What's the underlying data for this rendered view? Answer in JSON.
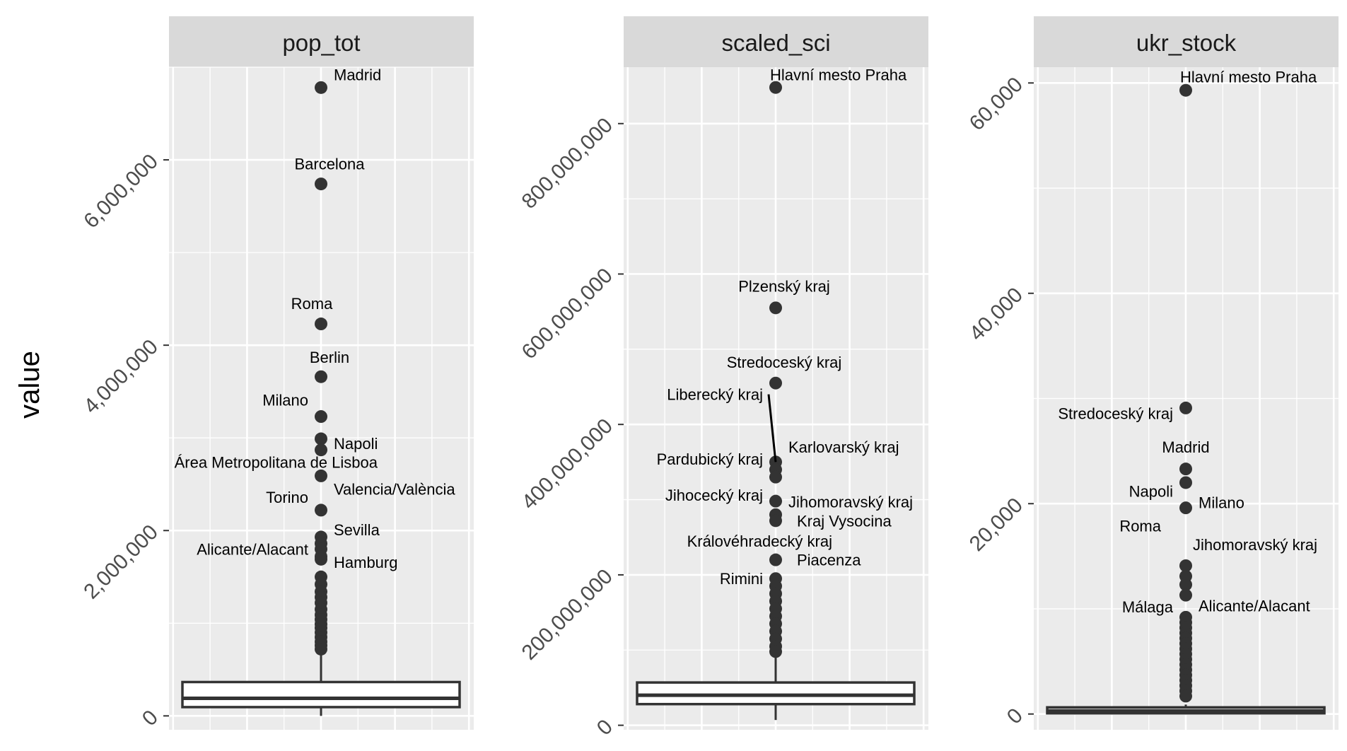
{
  "chart_data": {
    "type": "boxplot",
    "ylabel": "value",
    "xlabel": "",
    "grid": true,
    "facets": [
      {
        "name": "pop_tot",
        "ylim": [
          -150000,
          7000000
        ],
        "ticks": [
          0,
          2000000,
          4000000,
          6000000
        ],
        "tick_labels": [
          "0",
          "2,000,000",
          "4,000,000",
          "6,000,000"
        ],
        "box": {
          "q1": 110000,
          "median": 190000,
          "q3": 350000,
          "whisker_low": 0,
          "whisker_high": 700000
        },
        "outliers": [
          6780000,
          5740000,
          4230000,
          3660000,
          3230000,
          2990000,
          2870000,
          2590000,
          2220000,
          1930000,
          1860000,
          1800000,
          1720000,
          1690000,
          1500000,
          1420000,
          1340000,
          1280000,
          1220000,
          1150000,
          1090000,
          1040000,
          990000,
          950000,
          900000,
          850000,
          800000,
          760000,
          720000
        ],
        "labels": [
          {
            "text": "Madrid",
            "value": 6780000,
            "side": "right",
            "value_offset": 140000
          },
          {
            "text": "Barcelona",
            "value": 5740000,
            "side": "center",
            "value_offset": 220000
          },
          {
            "text": "Roma",
            "value": 4230000,
            "side": "left-center",
            "value_offset": 220000
          },
          {
            "text": "Berlin",
            "value": 3660000,
            "side": "center-right",
            "value_offset": 210000
          },
          {
            "text": "Milano",
            "value": 3230000,
            "side": "left",
            "value_offset": 180000
          },
          {
            "text": "Napoli",
            "value": 2990000,
            "side": "right",
            "value_offset": -50000
          },
          {
            "text": "Área Metropolitana de Lisboa",
            "value": 2590000,
            "side": "left-wide",
            "value_offset": 150000
          },
          {
            "text": "Valencia/València",
            "value": 2220000,
            "side": "right",
            "value_offset": 230000
          },
          {
            "text": "Torino",
            "value": 2220000,
            "side": "left",
            "value_offset": 140000
          },
          {
            "text": "Sevilla",
            "value": 1930000,
            "side": "right",
            "value_offset": 80000
          },
          {
            "text": "Alicante/Alacant",
            "value": 1800000,
            "side": "left",
            "value_offset": 0
          },
          {
            "text": "Hamburg",
            "value": 1720000,
            "side": "right",
            "value_offset": -60000
          }
        ]
      },
      {
        "name": "scaled_sci",
        "ylim": [
          -6000000,
          875000000
        ],
        "ticks": [
          0,
          200000000,
          400000000,
          600000000,
          800000000
        ],
        "tick_labels": [
          "0",
          "200,000,000",
          "400,000,000",
          "600,000,000",
          "800,000,000"
        ],
        "box": {
          "q1": 30000000,
          "median": 40000000,
          "q3": 55000000,
          "whisker_low": 7000000,
          "whisker_high": 90000000
        },
        "outliers": [
          848000000,
          555000000,
          455000000,
          350000000,
          340000000,
          330000000,
          298000000,
          280000000,
          272000000,
          220000000,
          195000000,
          185000000,
          175000000,
          165000000,
          155000000,
          145000000,
          135000000,
          125000000,
          115000000,
          105000000,
          98000000
        ],
        "labels": [
          {
            "text": "Hlavní mesto Praha",
            "value": 848000000,
            "side": "right-near",
            "value_offset": 17000000
          },
          {
            "text": "Plzenský kraj",
            "value": 555000000,
            "side": "center",
            "value_offset": 29000000
          },
          {
            "text": "Stredoceský kraj",
            "value": 455000000,
            "side": "center",
            "value_offset": 28000000
          },
          {
            "text": "Liberecký kraj",
            "value": 350000000,
            "side": "left-far",
            "value_offset": 90000000,
            "segment": true
          },
          {
            "text": "Karlovarský kraj",
            "value": 350000000,
            "side": "right",
            "value_offset": 20000000
          },
          {
            "text": "Pardubický kraj",
            "value": 340000000,
            "side": "left",
            "value_offset": 14000000
          },
          {
            "text": "Jihomoravský kraj",
            "value": 330000000,
            "side": "right",
            "value_offset": -33000000
          },
          {
            "text": "Jihocecký kraj",
            "value": 298000000,
            "side": "left",
            "value_offset": 8000000
          },
          {
            "text": "Kraj Vysocina",
            "value": 280000000,
            "side": "right-mid",
            "value_offset": -8000000
          },
          {
            "text": "Královéhradecký kraj",
            "value": 272000000,
            "side": "left-wide",
            "value_offset": -27000000
          },
          {
            "text": "Piacenza",
            "value": 220000000,
            "side": "right-mid",
            "value_offset": 0
          },
          {
            "text": "Rimini",
            "value": 220000000,
            "side": "left",
            "value_offset": -25000000
          }
        ]
      },
      {
        "name": "ukr_stock",
        "ylim": [
          -1500,
          61500
        ],
        "ticks": [
          0,
          20000,
          40000,
          60000
        ],
        "tick_labels": [
          "0",
          "20,000",
          "40,000",
          "60,000"
        ],
        "box": {
          "q1": 200,
          "median": 300,
          "q3": 500,
          "whisker_low": 0,
          "whisker_high": 900
        },
        "outliers": [
          59300,
          29100,
          23300,
          22000,
          19600,
          14100,
          13100,
          12300,
          11300,
          9200,
          8700,
          8200,
          7700,
          7200,
          6700,
          6200,
          5700,
          5200,
          4700,
          4200,
          3700,
          3200,
          2700,
          2200,
          1700
        ],
        "labels": [
          {
            "text": "Hlavní mesto Praha",
            "value": 59300,
            "side": "right-near",
            "value_offset": 1300
          },
          {
            "text": "Stredoceský kraj",
            "value": 29100,
            "side": "left-far",
            "value_offset": -500
          },
          {
            "text": "Madrid",
            "value": 23300,
            "side": "right-center",
            "value_offset": 2100
          },
          {
            "text": "Napoli",
            "value": 22000,
            "side": "left",
            "value_offset": -800
          },
          {
            "text": "Milano",
            "value": 19600,
            "side": "right",
            "value_offset": 500
          },
          {
            "text": "Roma",
            "value": 19600,
            "side": "left-mid",
            "value_offset": -1700
          },
          {
            "text": "Jihomoravský kraj",
            "value": 14100,
            "side": "right-wide",
            "value_offset": 2000
          },
          {
            "text": "Málaga",
            "value": 11300,
            "side": "left",
            "value_offset": -1100
          },
          {
            "text": "Alicante/Alacant",
            "value": 11300,
            "side": "right",
            "value_offset": -1000
          }
        ]
      }
    ]
  }
}
